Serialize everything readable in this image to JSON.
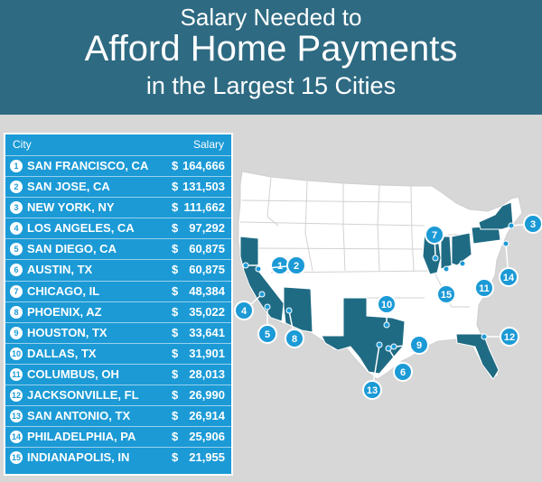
{
  "header": {
    "line1": "Salary Needed to",
    "line2": "Afford Home Payments",
    "line3": "in the Largest 15 Cities"
  },
  "table": {
    "col_city": "City",
    "col_salary": "Salary",
    "rows": [
      {
        "rank": "1",
        "city": "SAN FRANCISCO, CA",
        "currency": "$",
        "salary": "164,666"
      },
      {
        "rank": "2",
        "city": "SAN JOSE, CA",
        "currency": "$",
        "salary": "131,503"
      },
      {
        "rank": "3",
        "city": "NEW YORK, NY",
        "currency": "$",
        "salary": "111,662"
      },
      {
        "rank": "4",
        "city": "LOS ANGELES, CA",
        "currency": "$",
        "salary": "97,292"
      },
      {
        "rank": "5",
        "city": "SAN DIEGO, CA",
        "currency": "$",
        "salary": "60,875"
      },
      {
        "rank": "6",
        "city": "AUSTIN, TX",
        "currency": "$",
        "salary": "60,875"
      },
      {
        "rank": "7",
        "city": "CHICAGO, IL",
        "currency": "$",
        "salary": "48,384"
      },
      {
        "rank": "8",
        "city": "PHOENIX, AZ",
        "currency": "$",
        "salary": "35,022"
      },
      {
        "rank": "9",
        "city": "HOUSTON, TX",
        "currency": "$",
        "salary": "33,641"
      },
      {
        "rank": "10",
        "city": "DALLAS, TX",
        "currency": "$",
        "salary": "31,901"
      },
      {
        "rank": "11",
        "city": "COLUMBUS, OH",
        "currency": "$",
        "salary": "28,013"
      },
      {
        "rank": "12",
        "city": "JACKSONVILLE, FL",
        "currency": "$",
        "salary": "26,990"
      },
      {
        "rank": "13",
        "city": "SAN ANTONIO, TX",
        "currency": "$",
        "salary": "26,914"
      },
      {
        "rank": "14",
        "city": "PHILADELPHIA, PA",
        "currency": "$",
        "salary": "25,906"
      },
      {
        "rank": "15",
        "city": "INDIANAPOLIS, IN",
        "currency": "$",
        "salary": "21,955"
      }
    ]
  },
  "map": {
    "highlight_color": "#1f6b84",
    "base_color": "#ffffff",
    "marker_color": "#1b9ad6",
    "markers": [
      "1",
      "2",
      "3",
      "4",
      "5",
      "6",
      "7",
      "8",
      "9",
      "10",
      "11",
      "12",
      "13",
      "14",
      "15"
    ]
  }
}
